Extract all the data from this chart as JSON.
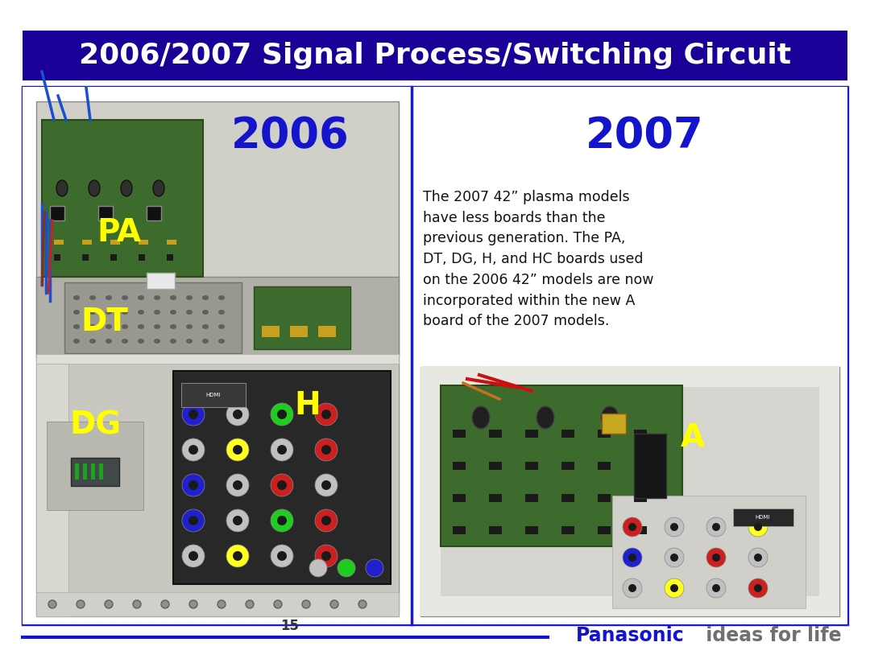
{
  "title": "2006/2007 Signal Process/Switching Circuit",
  "title_bg": "#1a0096",
  "title_color": "#ffffff",
  "title_fontsize": 26,
  "year_2006": "2006",
  "year_2007": "2007",
  "year_color": "#1414cc",
  "year_fontsize": 38,
  "label_color": "#ffff00",
  "label_fontsize": 28,
  "body_text": "The 2007 42” plasma models\nhave less boards than the\nprevious generation. The PA,\nDT, DG, H, and HC boards used\non the 2006 42” models are now\nincorporated within the new A\nboard of the 2007 models.",
  "body_text_fontsize": 12.5,
  "page_number": "15",
  "panasonic_color": "#1414cc",
  "tagline_color": "#707070",
  "footer_line_color": "#1414cc",
  "border_color": "#1a1acc",
  "bg_color": "#ffffff"
}
